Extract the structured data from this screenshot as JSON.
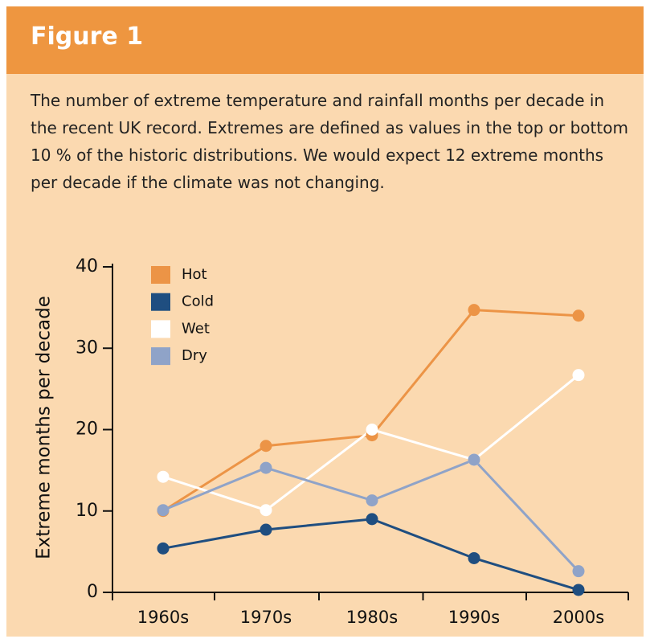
{
  "chart_data": {
    "type": "line",
    "title": "Figure 1",
    "subtitle": "The number of extreme temperature and rainfall months per decade in the recent UK record. Extremes are defined as values in the top or bottom 10 % of the historic distributions. We would expect 12 extreme months per decade if the climate was not changing.",
    "y_label": "Extreme months per decade",
    "categories": [
      "1960s",
      "1970s",
      "1980s",
      "1990s",
      "2000s"
    ],
    "series": [
      {
        "name": "Hot",
        "color": "#ec9446",
        "values": [
          10,
          18,
          19.3,
          34.7,
          34
        ]
      },
      {
        "name": "Cold",
        "color": "#1f4e80",
        "values": [
          5.4,
          7.7,
          9,
          4.2,
          0.3
        ]
      },
      {
        "name": "Wet",
        "color": "#ffffff",
        "values": [
          14.2,
          10.1,
          20,
          16.3,
          26.7
        ]
      },
      {
        "name": "Dry",
        "color": "#8fa3c8",
        "values": [
          10.1,
          15.3,
          11.3,
          16.3,
          2.6
        ]
      }
    ],
    "ylim": [
      0,
      40
    ],
    "yticks": [
      0,
      10,
      20,
      30,
      40
    ],
    "legend": "upper left"
  }
}
